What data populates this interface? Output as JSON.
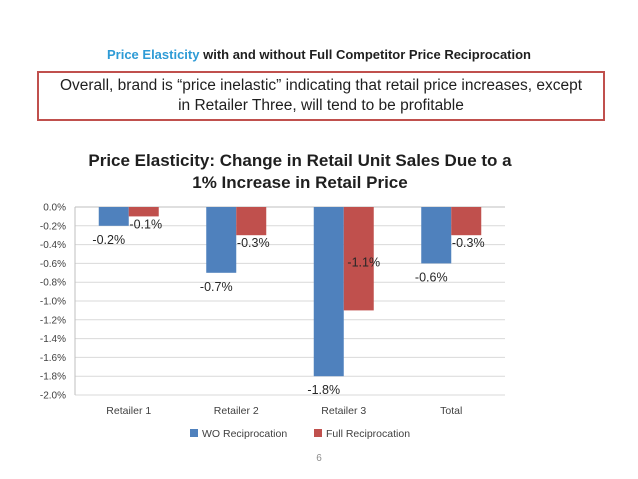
{
  "slide": {
    "title_accent": "Price Elasticity",
    "title_rest": " with and without Full Competitor Price Reciprocation",
    "callout_line1": "Overall, brand is “price inelastic” indicating that retail price increases, except",
    "callout_line2": "in Retailer Three, will tend to be profitable",
    "page_number": "6"
  },
  "colors": {
    "series1": "#4f81bd",
    "series2": "#c0504d",
    "accent": "#2e9bd6",
    "callout_border": "#c0504d"
  },
  "chart_data": {
    "type": "bar",
    "title_line1": "Price Elasticity:  Change in Retail Unit Sales Due to a",
    "title_line2": "1% Increase in Retail Price",
    "categories": [
      "Retailer 1",
      "Retailer 2",
      "Retailer 3",
      "Total"
    ],
    "series": [
      {
        "name": "WO Reciprocation",
        "values": [
          -0.2,
          -0.7,
          -1.8,
          -0.6
        ],
        "labels": [
          "-0.2%",
          "-0.7%",
          "-1.8%",
          "-0.6%"
        ]
      },
      {
        "name": "Full Reciprocation",
        "values": [
          -0.1,
          -0.3,
          -1.1,
          -0.3
        ],
        "labels": [
          "-0.1%",
          "-0.3%",
          "-1.1%",
          "-0.3%"
        ]
      }
    ],
    "ylim": [
      -2.0,
      0.0
    ],
    "yticks": [
      0.0,
      -0.2,
      -0.4,
      -0.6,
      -0.8,
      -1.0,
      -1.2,
      -1.4,
      -1.6,
      -1.8,
      -2.0
    ],
    "ytick_labels": [
      "0.0%",
      "-0.2%",
      "-0.4%",
      "-0.6%",
      "-0.8%",
      "-1.0%",
      "-1.2%",
      "-1.4%",
      "-1.6%",
      "-1.8%",
      "-2.0%"
    ],
    "legend_position": "bottom",
    "grid": true
  }
}
